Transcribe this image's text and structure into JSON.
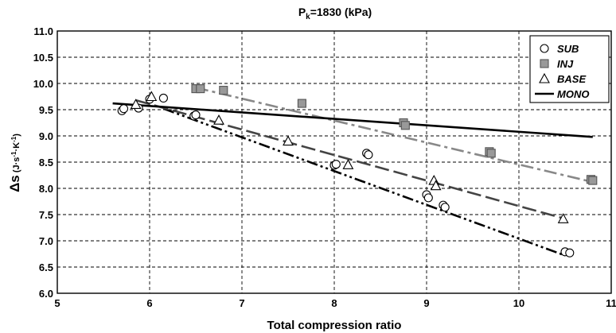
{
  "chart_data": {
    "type": "scatter",
    "title_main": "P",
    "title_sub": "k",
    "title_rest": "=1830 (kPa)",
    "xlabel": "Total compression ratio",
    "ylabel_main": "Δs",
    "ylabel_unit_parts": [
      "(J·s",
      "-1",
      "·K",
      "-1",
      ")"
    ],
    "xlim": [
      5,
      11
    ],
    "ylim": [
      6.0,
      11.0
    ],
    "x_ticks": [
      5,
      6,
      7,
      8,
      9,
      10,
      11
    ],
    "x_tick_labels": [
      "5",
      "6",
      "7",
      "8",
      "9",
      "10",
      "11"
    ],
    "y_ticks": [
      6.0,
      6.5,
      7.0,
      7.5,
      8.0,
      8.5,
      9.0,
      9.5,
      10.0,
      10.5,
      11.0
    ],
    "y_tick_labels": [
      "6.0",
      "6.5",
      "7.0",
      "7.5",
      "8.0",
      "8.5",
      "9.0",
      "9.5",
      "10.0",
      "10.5",
      "11.0"
    ],
    "grid": true,
    "legend_position": "top-right",
    "series": [
      {
        "name": "SUB",
        "marker": "circle",
        "points": [
          [
            5.7,
            9.48
          ],
          [
            5.72,
            9.52
          ],
          [
            5.88,
            9.53
          ],
          [
            6.0,
            9.7
          ],
          [
            6.15,
            9.72
          ],
          [
            6.48,
            9.38
          ],
          [
            6.5,
            9.4
          ],
          [
            8.0,
            8.44
          ],
          [
            8.02,
            8.46
          ],
          [
            8.35,
            8.67
          ],
          [
            8.37,
            8.64
          ],
          [
            9.0,
            7.88
          ],
          [
            9.02,
            7.82
          ],
          [
            9.18,
            7.68
          ],
          [
            9.2,
            7.64
          ],
          [
            10.5,
            6.79
          ],
          [
            10.55,
            6.77
          ]
        ]
      },
      {
        "name": "INJ",
        "marker": "square",
        "points": [
          [
            6.5,
            9.9
          ],
          [
            6.55,
            9.9
          ],
          [
            6.8,
            9.87
          ],
          [
            7.65,
            9.62
          ],
          [
            8.75,
            9.25
          ],
          [
            8.77,
            9.2
          ],
          [
            9.68,
            8.7
          ],
          [
            9.7,
            8.67
          ],
          [
            10.78,
            8.17
          ],
          [
            10.8,
            8.15
          ]
        ]
      },
      {
        "name": "BASE",
        "marker": "triangle",
        "points": [
          [
            5.85,
            9.6
          ],
          [
            6.02,
            9.75
          ],
          [
            6.75,
            9.3
          ],
          [
            7.5,
            8.9
          ],
          [
            8.15,
            8.45
          ],
          [
            9.08,
            8.15
          ],
          [
            9.1,
            8.05
          ],
          [
            10.48,
            7.42
          ]
        ]
      },
      {
        "name": "MONO",
        "marker": "line",
        "points": []
      }
    ],
    "trend_lines": [
      {
        "series": "SUB",
        "style": "dash-dot-dot",
        "color": "#000000",
        "from": [
          6.15,
          9.52
        ],
        "to": [
          10.5,
          6.72
        ]
      },
      {
        "series": "INJ",
        "style": "dash-dot",
        "color": "#888888",
        "from": [
          6.5,
          9.92
        ],
        "to": [
          10.8,
          8.12
        ]
      },
      {
        "series": "BASE",
        "style": "long-dash",
        "color": "#444444",
        "from": [
          5.85,
          9.68
        ],
        "to": [
          10.5,
          7.42
        ]
      },
      {
        "series": "MONO",
        "style": "solid",
        "color": "#000000",
        "from": [
          5.6,
          9.62
        ],
        "to": [
          10.8,
          8.98
        ]
      }
    ]
  },
  "colors": {
    "square_fill": "#999999",
    "square_stroke": "#555555",
    "grid": "#000000"
  }
}
